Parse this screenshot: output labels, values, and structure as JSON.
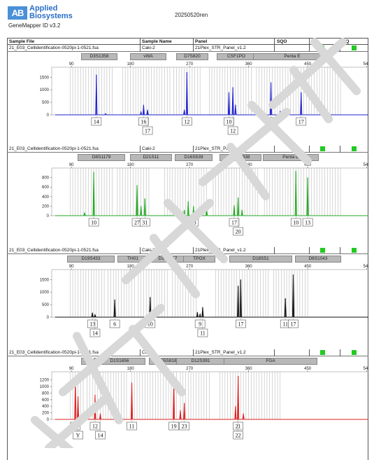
{
  "header": {
    "logo_mark": "AB",
    "logo_line1": "Applied",
    "logo_line2": "Biosystems",
    "app_version": "GeneMapper ID v3.2",
    "run_name": "20250520ren"
  },
  "columns": {
    "sample_file": "Sample File",
    "sample_name": "Sample Name",
    "panel": "Panel",
    "sqo": "SQO",
    "os": "OS",
    "sq": "SQ"
  },
  "colors": {
    "blue": "#2020d0",
    "green": "#22aa22",
    "black": "#111111",
    "red": "#dd2020",
    "bin": "#bbbbbb",
    "qc_green": "#22c922"
  },
  "watermark_color": "#d8d8d8",
  "panels": [
    {
      "sample_file": "21_E03_Cellidentification-0520pi-1-0521.fsa",
      "sample_name": "Caki-2",
      "panel": "21Plex_STR_Panel_v1.2",
      "loci": [
        "D3S1358",
        "vWA",
        "D7S820",
        "CSF1PO",
        "Penta E"
      ],
      "x_ticks": [
        "90",
        "180",
        "270",
        "360",
        "450",
        "540"
      ],
      "y_ticks": [
        "0",
        "500",
        "1000",
        "1500"
      ],
      "alleles_row1": [
        "14",
        "16",
        "12",
        "10",
        "7",
        "17"
      ],
      "alleles_row2": [
        "17",
        "12"
      ]
    },
    {
      "sample_file": "21_E03_Cellidentification-0520pi-1-0521.fsa",
      "sample_name": "Caki-2",
      "panel": "21Plex_STR_Panel_v1.2",
      "loci": [
        "D8S1179",
        "D21S11",
        "D16S539",
        "D2S1338",
        "Penta D"
      ],
      "x_ticks": [
        "90",
        "180",
        "270",
        "360",
        "450",
        "540"
      ],
      "y_ticks": [
        "0",
        "200",
        "400",
        "600",
        "800"
      ],
      "alleles_row1": [
        "10",
        "27",
        "31",
        "9",
        "13",
        "17",
        "10",
        "13"
      ],
      "alleles_row2": [
        "20"
      ]
    },
    {
      "sample_file": "21_E03_Cellidentification-0520pi-1-0521.fsa",
      "sample_name": "Caki-2",
      "panel": "21Plex_STR_Panel_v1.2",
      "loci": [
        "D19S433",
        "TH01",
        "D13S317",
        "TPOX",
        "D18S51",
        "D6S1043"
      ],
      "x_ticks": [
        "90",
        "180",
        "270",
        "360",
        "450",
        "540"
      ],
      "y_ticks": [
        "0",
        "500",
        "1000",
        "1500"
      ],
      "alleles_row1": [
        "13",
        "6",
        "10",
        "9",
        "17",
        "11",
        "17"
      ],
      "alleles_row2": [
        "14",
        "11"
      ]
    },
    {
      "sample_file": "21_E03_Cellidentification-0520pi-1-0521.fsa",
      "sample_name": "Caki-2",
      "panel": "21Plex_STR_Panel_v1.2",
      "loci": [
        "...",
        "D1S1656",
        "D5S818",
        "D12S391",
        "FGA"
      ],
      "x_ticks": [
        "90",
        "180",
        "270",
        "360",
        "450",
        "540"
      ],
      "y_ticks": [
        "0",
        "200",
        "400",
        "600",
        "800",
        "1000",
        "1200"
      ],
      "alleles_row1": [
        "X",
        "12",
        "11",
        "19",
        "23",
        "21"
      ],
      "alleles_row2": [
        "Y",
        "14",
        "22"
      ]
    }
  ],
  "chart_data": [
    {
      "type": "line",
      "xlim": [
        60,
        550
      ],
      "ylim": [
        0,
        1900
      ],
      "series": [
        {
          "color": "#2020d0",
          "peaks": [
            [
              128,
              1600
            ],
            [
              142,
              50
            ],
            [
              196,
              120
            ],
            [
              200,
              400
            ],
            [
              206,
              200
            ],
            [
              262,
              200
            ],
            [
              266,
              1700
            ],
            [
              330,
              900
            ],
            [
              336,
              1100
            ],
            [
              340,
              400
            ],
            [
              394,
              1300
            ],
            [
              408,
              150
            ],
            [
              440,
              900
            ]
          ]
        }
      ],
      "alleles": [
        {
          "label": "14",
          "x": 128
        },
        {
          "label": "16",
          "x": 200
        },
        {
          "label": "17",
          "x": 206
        },
        {
          "label": "12",
          "x": 266
        },
        {
          "label": "10",
          "x": 330
        },
        {
          "label": "12",
          "x": 336
        },
        {
          "label": "7",
          "x": 394
        },
        {
          "label": "17",
          "x": 440
        }
      ]
    },
    {
      "type": "line",
      "xlim": [
        60,
        550
      ],
      "ylim": [
        0,
        1000
      ],
      "series": [
        {
          "color": "#22aa22",
          "peaks": [
            [
              110,
              60
            ],
            [
              124,
              920
            ],
            [
              190,
              640
            ],
            [
              196,
              200
            ],
            [
              202,
              360
            ],
            [
              262,
              120
            ],
            [
              268,
              300
            ],
            [
              276,
              200
            ],
            [
              296,
              200
            ],
            [
              338,
              220
            ],
            [
              344,
              380
            ],
            [
              350,
              120
            ],
            [
              432,
              940
            ],
            [
              450,
              800
            ]
          ]
        }
      ],
      "alleles": [
        {
          "label": "10",
          "x": 124
        },
        {
          "label": "27",
          "x": 190
        },
        {
          "label": "31",
          "x": 202
        },
        {
          "label": "9",
          "x": 268
        },
        {
          "label": "13",
          "x": 276
        },
        {
          "label": "17",
          "x": 338
        },
        {
          "label": "20",
          "x": 344
        },
        {
          "label": "10",
          "x": 432
        },
        {
          "label": "13",
          "x": 450
        }
      ]
    },
    {
      "type": "line",
      "xlim": [
        60,
        550
      ],
      "ylim": [
        0,
        1900
      ],
      "series": [
        {
          "color": "#111111",
          "peaks": [
            [
              122,
              180
            ],
            [
              126,
              100
            ],
            [
              156,
              700
            ],
            [
              210,
              800
            ],
            [
              282,
              200
            ],
            [
              286,
              120
            ],
            [
              290,
              400
            ],
            [
              344,
              1250
            ],
            [
              348,
              1500
            ],
            [
              416,
              750
            ],
            [
              428,
              1700
            ]
          ]
        }
      ],
      "alleles": [
        {
          "label": "13",
          "x": 122
        },
        {
          "label": "14",
          "x": 126
        },
        {
          "label": "6",
          "x": 156
        },
        {
          "label": "10",
          "x": 210
        },
        {
          "label": "9",
          "x": 286
        },
        {
          "label": "11",
          "x": 290
        },
        {
          "label": "17",
          "x": 348
        },
        {
          "label": "11",
          "x": 416
        },
        {
          "label": "17",
          "x": 428
        }
      ]
    },
    {
      "type": "line",
      "xlim": [
        60,
        550
      ],
      "ylim": [
        0,
        1450
      ],
      "series": [
        {
          "color": "#dd2020",
          "peaks": [
            [
              96,
              1250
            ],
            [
              100,
              700
            ],
            [
              126,
              750
            ],
            [
              134,
              180
            ],
            [
              182,
              1120
            ],
            [
              246,
              1180
            ],
            [
              256,
              280
            ],
            [
              262,
              500
            ],
            [
              340,
              400
            ],
            [
              344,
              1320
            ],
            [
              352,
              180
            ]
          ]
        }
      ],
      "alleles": [
        {
          "label": "X",
          "x": 96
        },
        {
          "label": "Y",
          "x": 100
        },
        {
          "label": "12",
          "x": 126
        },
        {
          "label": "14",
          "x": 134
        },
        {
          "label": "11",
          "x": 182
        },
        {
          "label": "19",
          "x": 246
        },
        {
          "label": "23",
          "x": 262
        },
        {
          "label": "21",
          "x": 344
        },
        {
          "label": "22",
          "x": 344
        }
      ]
    }
  ]
}
